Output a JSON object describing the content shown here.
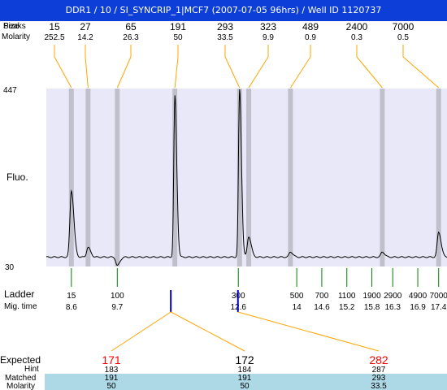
{
  "window": {
    "title": "DDR1 / 10 / SI_SYNCRIP_1|MCF7 (2007-07-05 96hrs) / Well ID 1120737"
  },
  "top_labels": {
    "size": "Size",
    "peaks": "Peaks",
    "molarity": "Molarity"
  },
  "axis": {
    "ymax_label": "447",
    "ymin_label": "30",
    "ylabel": "Fluo."
  },
  "peaks": [
    {
      "size": "15",
      "molarity": "252.5"
    },
    {
      "size": "27",
      "molarity": "14.2"
    },
    {
      "size": "65",
      "molarity": "26.3"
    },
    {
      "size": "191",
      "molarity": "50"
    },
    {
      "size": "293",
      "molarity": "33.5"
    },
    {
      "size": "323",
      "molarity": "9.9"
    },
    {
      "size": "489",
      "molarity": "0.9"
    },
    {
      "size": "2400",
      "molarity": "0.3"
    },
    {
      "size": "7000",
      "molarity": "0.5"
    }
  ],
  "ladder": {
    "label": "Ladder",
    "migtime_label": "Mig. time",
    "items": [
      {
        "size": "15",
        "time": "8.6"
      },
      {
        "size": "100",
        "time": "9.7"
      },
      {
        "size": "300",
        "time": "12.6"
      },
      {
        "size": "500",
        "time": "14"
      },
      {
        "size": "700",
        "time": "14.6"
      },
      {
        "size": "1100",
        "time": "15.2"
      },
      {
        "size": "1900",
        "time": "15.8"
      },
      {
        "size": "2900",
        "time": "16.3"
      },
      {
        "size": "4900",
        "time": "16.9"
      },
      {
        "size": "7000",
        "time": "17.4"
      }
    ]
  },
  "expected": {
    "labels": {
      "expected": "Expected",
      "hint": "Hint",
      "matched": "Matched",
      "molarity": "Molarity"
    },
    "columns": [
      {
        "expected": "171",
        "hint": "183",
        "matched": "191",
        "molarity": "50"
      },
      {
        "expected": "172",
        "hint": "184",
        "matched": "191",
        "molarity": "50"
      },
      {
        "expected": "282",
        "hint": "287",
        "matched": "293",
        "molarity": "33.5"
      }
    ]
  },
  "colors": {
    "title_bg": "#0d3fd8",
    "plot_bg": "#e8e8f8",
    "band": "#c0c0cc",
    "connector": "#ffa500",
    "ladder_tick": "#008000",
    "marker": "#0000cc",
    "expected_red": "#ff0000",
    "matched_bg": "#add8e6"
  },
  "chart_data": {
    "type": "line",
    "title": "DDR1 / 10 / SI_SYNCRIP_1|MCF7 (2007-07-05 96hrs) / Well ID 1120737",
    "ylabel": "Fluo.",
    "ylim": [
      30,
      447
    ],
    "xlim": [
      8.0,
      17.6
    ],
    "x_unit": "migration time",
    "baseline": 52,
    "peaks": [
      {
        "size": 15,
        "time": 8.6,
        "height": 208
      },
      {
        "size": 27,
        "time": 9.0,
        "height": 75
      },
      {
        "size": 65,
        "time": 9.7,
        "height": 32
      },
      {
        "size": 191,
        "time": 11.08,
        "height": 430
      },
      {
        "size": 293,
        "time": 12.63,
        "height": 444
      },
      {
        "size": 323,
        "time": 12.85,
        "height": 100
      },
      {
        "size": 489,
        "time": 13.85,
        "height": 64
      },
      {
        "size": 2400,
        "time": 16.05,
        "height": 64
      },
      {
        "size": 7000,
        "time": 17.4,
        "height": 110
      }
    ]
  }
}
